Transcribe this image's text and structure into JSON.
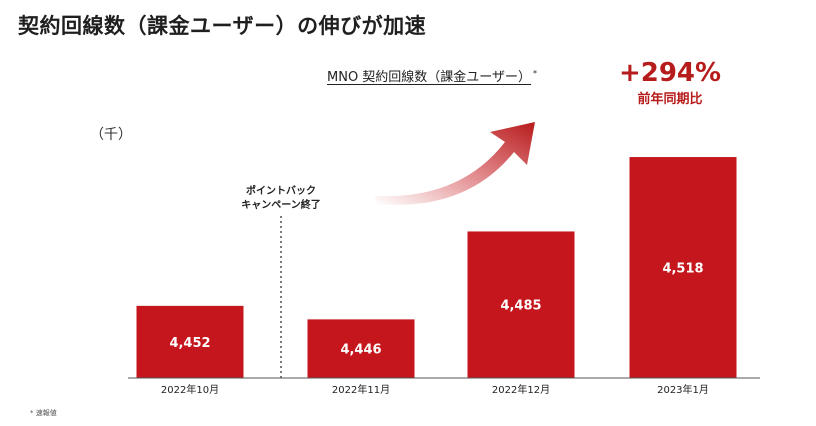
{
  "title": "契約回線数（課金ユーザー）の伸びが加速",
  "subtitle": "MNO 契約回線数（課金ユーザー）",
  "subtitle_mark": "*",
  "growth": {
    "value": "+294%",
    "label": "前年同期比"
  },
  "unit": "（千）",
  "footnote": "* 速報値",
  "annotation": [
    "ポイントバック",
    "キャンペーン終了"
  ],
  "colors": {
    "bar": "#c4161c",
    "accent": "#b71c1c"
  },
  "chart_data": {
    "type": "bar",
    "categories": [
      "2022年10月",
      "2022年11月",
      "2022年12月",
      "2023年1月"
    ],
    "values": [
      4452,
      4446,
      4485,
      4518
    ],
    "value_labels": [
      "4,452",
      "4,446",
      "4,485",
      "4,518"
    ],
    "title": "MNO 契約回線数（課金ユーザー）",
    "ylabel": "（千）",
    "ylim": [
      4420,
      4530
    ],
    "grid": false,
    "legend": "none"
  }
}
